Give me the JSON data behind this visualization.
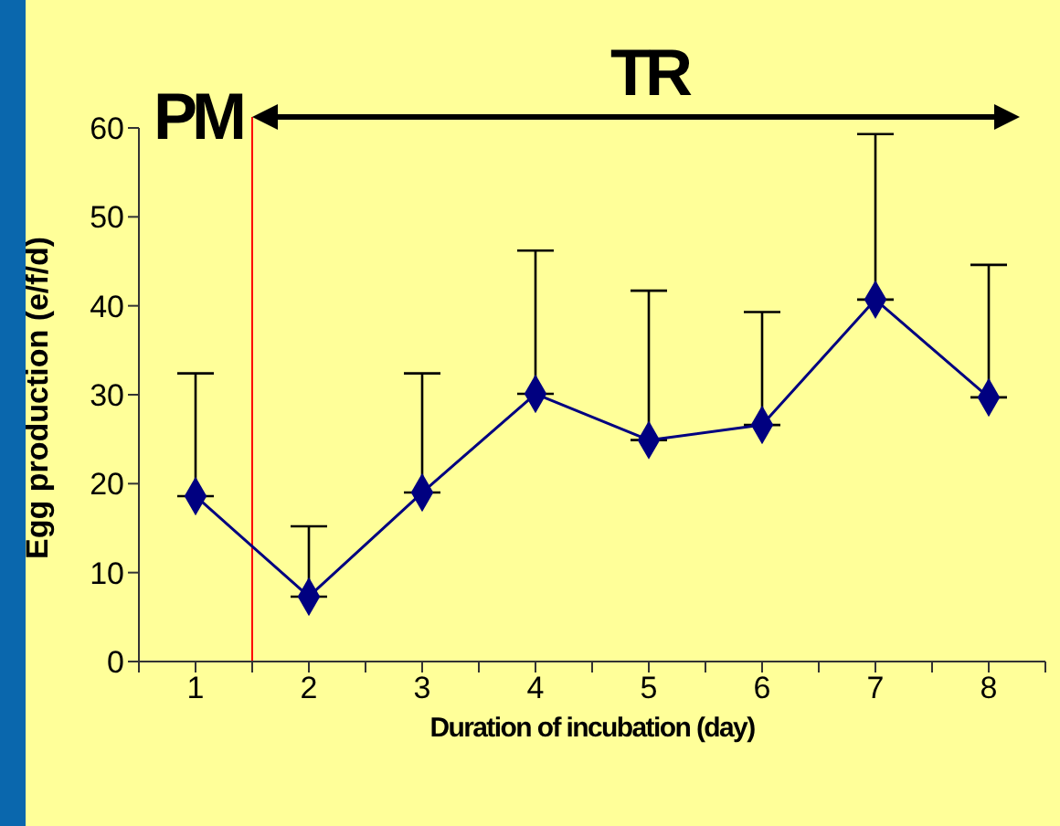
{
  "chart_data": {
    "type": "line",
    "xlabel": "Duration of incubation (day)",
    "ylabel": "Egg production (e/f/d)",
    "x": [
      1,
      2,
      3,
      4,
      5,
      6,
      7,
      8
    ],
    "xlim": [
      0.5,
      8.5
    ],
    "xticks": [
      {
        "value": 0.5,
        "label": null
      },
      1,
      {
        "value": 1.5,
        "label": null
      },
      2,
      {
        "value": 2.5,
        "label": null
      },
      3,
      {
        "value": 3.5,
        "label": null
      },
      4,
      {
        "value": 4.5,
        "label": null
      },
      5,
      {
        "value": 5.5,
        "label": null
      },
      6,
      {
        "value": 6.5,
        "label": null
      },
      7,
      {
        "value": 7.5,
        "label": null
      },
      8,
      {
        "value": 8.5,
        "label": null
      }
    ],
    "ylim": [
      0,
      60
    ],
    "yticks": [
      0,
      10,
      20,
      30,
      40,
      50,
      60
    ],
    "series": [
      {
        "color": "#000080",
        "values": [
          18.6,
          7.3,
          19.0,
          30.1,
          24.9,
          26.6,
          40.7,
          29.7
        ],
        "errors": [
          [
            18.6,
            32.4
          ],
          [
            7.3,
            15.2
          ],
          [
            19.0,
            32.4
          ],
          [
            30.1,
            46.2
          ],
          [
            24.9,
            41.7
          ],
          [
            26.6,
            39.3
          ],
          [
            40.7,
            59.3
          ],
          [
            29.7,
            44.6
          ]
        ]
      }
    ],
    "marker": "diamond",
    "line_style": "solid",
    "grid": false,
    "legend": false,
    "ref_lines": [
      {
        "axis": "x",
        "value": 1.5,
        "color": "#ff0000"
      }
    ],
    "annotations": [
      "PM",
      "TR"
    ]
  }
}
